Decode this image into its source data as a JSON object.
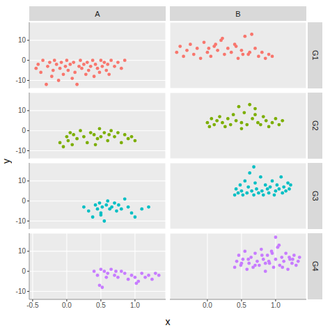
{
  "chart_data": {
    "type": "scatter",
    "x_label": "x",
    "y_label": "y",
    "columns": [
      "A",
      "B"
    ],
    "xlim": [
      -0.55,
      1.45
    ],
    "xticks": [
      -0.5,
      {
        "value": 0,
        "label": "0.0"
      },
      0.5,
      {
        "value": 1,
        "label": "1.0"
      }
    ],
    "ylim": [
      -14,
      19
    ],
    "yticks": [
      -10,
      0,
      10
    ],
    "grid": true,
    "series": [
      {
        "name": "G1",
        "color": "#F8766D",
        "facets": [
          {
            "x": [
              -0.45,
              -0.42,
              -0.38,
              -0.35,
              -0.3,
              -0.28,
              -0.25,
              -0.22,
              -0.2,
              -0.18,
              -0.15,
              -0.12,
              -0.1,
              -0.08,
              -0.05,
              -0.02,
              0,
              0.02,
              0.05,
              0.08,
              0.1,
              0.12,
              0.15,
              0.18,
              0.2,
              0.22,
              0.25,
              0.28,
              0.3,
              0.32,
              0.35,
              0.38,
              0.4,
              0.42,
              0.45,
              0.48,
              0.5,
              0.52,
              0.55,
              0.58,
              0.6,
              0.62,
              0.65,
              0.7,
              0.75,
              0.8,
              0.85
            ],
            "y": [
              -4,
              -2,
              -6,
              0,
              -12,
              -3,
              -1,
              -8,
              -5,
              0,
              -2,
              -10,
              -4,
              -1,
              -7,
              -3,
              0,
              -5,
              -2,
              -9,
              -1,
              -6,
              -12,
              -3,
              0,
              -4,
              -2,
              -7,
              -1,
              -5,
              -3,
              0,
              -8,
              -2,
              -4,
              -6,
              0,
              -3,
              -1,
              -5,
              -2,
              -7,
              0,
              -3,
              -1,
              -4,
              0
            ]
          },
          {
            "x": [
              -0.45,
              -0.4,
              -0.35,
              -0.3,
              -0.25,
              -0.2,
              -0.15,
              -0.1,
              -0.05,
              0,
              0.05,
              0.1,
              0.15,
              0.2,
              0.25,
              0.3,
              0.35,
              0.4,
              0.45,
              0.5,
              0.55,
              0.6,
              0.65,
              0.7,
              0.75,
              0.8,
              0.85,
              0.9,
              0.95,
              0.02,
              0.22,
              0.42,
              0.62,
              0.12,
              0.52
            ],
            "y": [
              4,
              7,
              2,
              5,
              8,
              3,
              6,
              1,
              9,
              4,
              2,
              7,
              5,
              10,
              3,
              6,
              4,
              8,
              1,
              5,
              12,
              3,
              13,
              6,
              2,
              4,
              1,
              3,
              2,
              6,
              11,
              7,
              4,
              8,
              3
            ]
          }
        ]
      },
      {
        "name": "G2",
        "color": "#7CAE00",
        "facets": [
          {
            "x": [
              -0.1,
              -0.05,
              0,
              0.02,
              0.05,
              0.08,
              0.1,
              0.15,
              0.2,
              0.25,
              0.3,
              0.35,
              0.4,
              0.45,
              0.48,
              0.5,
              0.55,
              0.6,
              0.62,
              0.65,
              0.7,
              0.75,
              0.8,
              0.85,
              0.9,
              0.95,
              1.0,
              0.42
            ],
            "y": [
              -6,
              -8,
              -3,
              -5,
              -1,
              -7,
              -2,
              -4,
              0,
              -3,
              -6,
              -1,
              -2,
              -4,
              1,
              -3,
              -1,
              -5,
              -2,
              0,
              -3,
              -1,
              -6,
              -2,
              -4,
              -3,
              -5,
              -7
            ]
          },
          {
            "x": [
              0,
              0.03,
              0.06,
              0.1,
              0.14,
              0.18,
              0.22,
              0.26,
              0.3,
              0.34,
              0.38,
              0.42,
              0.46,
              0.5,
              0.54,
              0.58,
              0.62,
              0.66,
              0.7,
              0.74,
              0.78,
              0.82,
              0.86,
              0.9,
              0.95,
              1.0,
              1.05,
              1.1,
              0.5,
              0.7
            ],
            "y": [
              4,
              2,
              6,
              3,
              5,
              7,
              4,
              2,
              6,
              3,
              8,
              5,
              12,
              4,
              9,
              3,
              13,
              6,
              11,
              4,
              3,
              7,
              5,
              2,
              4,
              6,
              3,
              5,
              1,
              8
            ]
          }
        ]
      },
      {
        "name": "G3",
        "color": "#00BFC4",
        "facets": [
          {
            "x": [
              0.25,
              0.32,
              0.38,
              0.42,
              0.45,
              0.48,
              0.5,
              0.52,
              0.55,
              0.58,
              0.6,
              0.63,
              0.66,
              0.7,
              0.73,
              0.76,
              0.8,
              0.85,
              0.9,
              0.95,
              1.0,
              1.1,
              1.2,
              0.5
            ],
            "y": [
              -3,
              -5,
              -8,
              -2,
              -4,
              -1,
              -6,
              -3,
              -10,
              -2,
              0,
              -4,
              -3,
              -1,
              -5,
              -2,
              -4,
              1,
              -3,
              -6,
              -8,
              -4,
              -3,
              -7
            ]
          },
          {
            "x": [
              0.4,
              0.42,
              0.45,
              0.48,
              0.5,
              0.52,
              0.55,
              0.58,
              0.6,
              0.62,
              0.65,
              0.68,
              0.7,
              0.72,
              0.75,
              0.78,
              0.8,
              0.82,
              0.85,
              0.88,
              0.9,
              0.92,
              0.95,
              0.98,
              1.0,
              1.02,
              1.05,
              1.08,
              1.1,
              1.12,
              1.15,
              1.18,
              1.2,
              1.22,
              0.68
            ],
            "y": [
              3,
              6,
              4,
              8,
              5,
              3,
              10,
              4,
              7,
              14,
              5,
              3,
              9,
              6,
              4,
              12,
              5,
              3,
              8,
              6,
              4,
              7,
              10,
              3,
              5,
              8,
              6,
              12,
              4,
              7,
              5,
              9,
              6,
              8,
              17
            ]
          }
        ]
      },
      {
        "name": "G4",
        "color": "#C77CFF",
        "facets": [
          {
            "x": [
              0.4,
              0.45,
              0.48,
              0.5,
              0.52,
              0.55,
              0.6,
              0.65,
              0.7,
              0.75,
              0.8,
              0.85,
              0.9,
              0.95,
              1.0,
              1.05,
              1.1,
              1.15,
              1.2,
              1.25,
              1.3,
              1.35,
              0.58,
              0.72,
              1.02
            ],
            "y": [
              0,
              -2,
              -7,
              1,
              -8,
              0,
              -1,
              1,
              -2,
              -3,
              0,
              -1,
              -4,
              -2,
              -3,
              -5,
              -1,
              -3,
              -2,
              -4,
              -1,
              -2,
              -3,
              0,
              -6
            ]
          },
          {
            "x": [
              0.4,
              0.43,
              0.46,
              0.49,
              0.52,
              0.55,
              0.58,
              0.61,
              0.64,
              0.67,
              0.7,
              0.73,
              0.76,
              0.79,
              0.82,
              0.85,
              0.88,
              0.91,
              0.94,
              0.97,
              1.0,
              1.03,
              1.06,
              1.09,
              1.12,
              1.15,
              1.18,
              1.21,
              1.24,
              1.27,
              1.3,
              1.33,
              1.35,
              0.5,
              0.6,
              0.7,
              0.8,
              0.9,
              1.0,
              1.1,
              1.2,
              1.05,
              0.95,
              0.85,
              1.25
            ],
            "y": [
              2,
              5,
              8,
              3,
              6,
              10,
              1,
              4,
              7,
              2,
              9,
              5,
              3,
              11,
              6,
              0,
              8,
              4,
              10,
              2,
              6,
              12,
              3,
              7,
              5,
              9,
              1,
              6,
              4,
              8,
              3,
              5,
              7,
              4,
              6,
              3,
              8,
              5,
              17,
              2,
              7,
              13,
              9,
              4,
              6
            ]
          }
        ]
      }
    ]
  }
}
